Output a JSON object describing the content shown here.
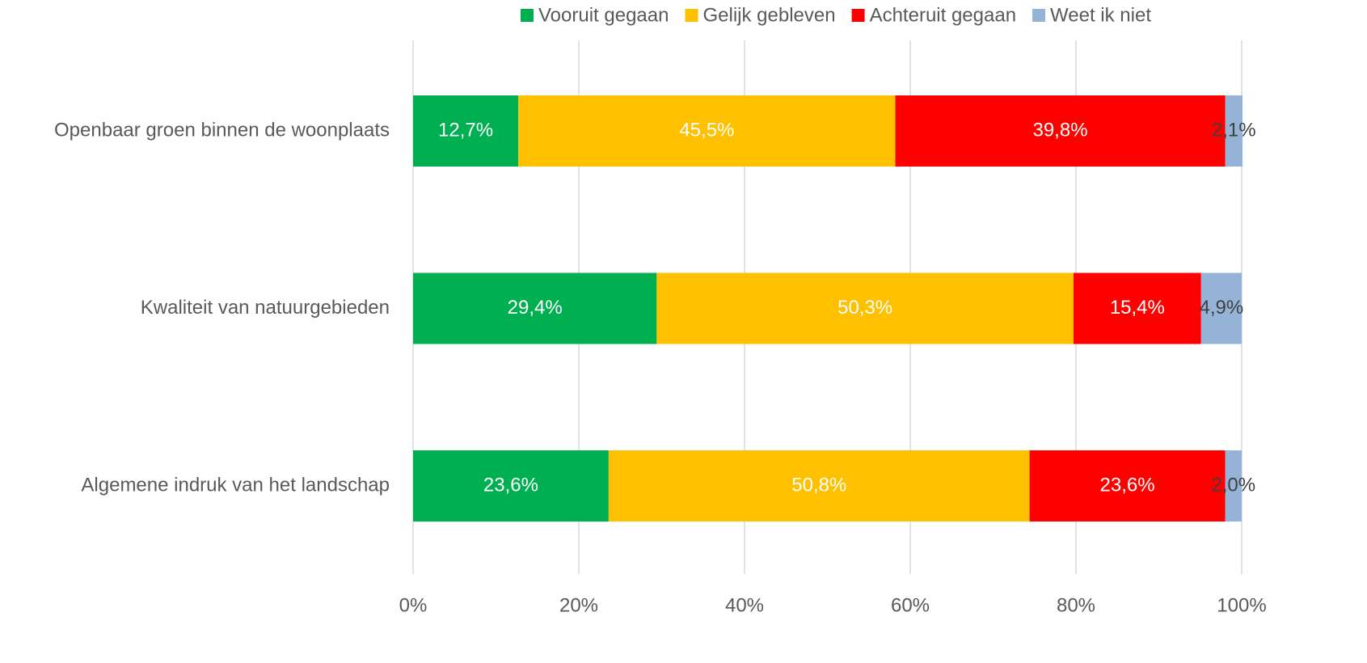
{
  "chart_data": {
    "type": "stacked_bar_horizontal",
    "categories": [
      "Openbaar groen binnen de woonplaats",
      "Kwaliteit van natuurgebieden",
      "Algemene indruk van het landschap"
    ],
    "series": [
      {
        "name": "Vooruit gegaan",
        "color": "#00b050",
        "values": [
          12.7,
          29.4,
          23.6
        ],
        "value_labels": [
          "12,7%",
          "29,4%",
          "23,6%"
        ]
      },
      {
        "name": "Gelijk gebleven",
        "color": "#ffc000",
        "values": [
          45.5,
          50.3,
          50.8
        ],
        "value_labels": [
          "45,5%",
          "50,3%",
          "50,8%"
        ]
      },
      {
        "name": "Achteruit gegaan",
        "color": "#ff0000",
        "values": [
          39.8,
          15.4,
          23.6
        ],
        "value_labels": [
          "39,8%",
          "15,4%",
          "23,6%"
        ]
      },
      {
        "name": "Weet ik niet",
        "color": "#95b3d7",
        "values": [
          2.1,
          4.9,
          2.0
        ],
        "value_labels": [
          "2,1%",
          "4,9%",
          "2,0%"
        ]
      }
    ],
    "xlim": [
      0,
      100
    ],
    "xticks": [
      {
        "value": 0,
        "label": "0%"
      },
      {
        "value": 20,
        "label": "20%"
      },
      {
        "value": 40,
        "label": "40%"
      },
      {
        "value": 60,
        "label": "60%"
      },
      {
        "value": 80,
        "label": "80%"
      },
      {
        "value": 100,
        "label": "100%"
      }
    ],
    "grid": true,
    "legend": "top"
  }
}
